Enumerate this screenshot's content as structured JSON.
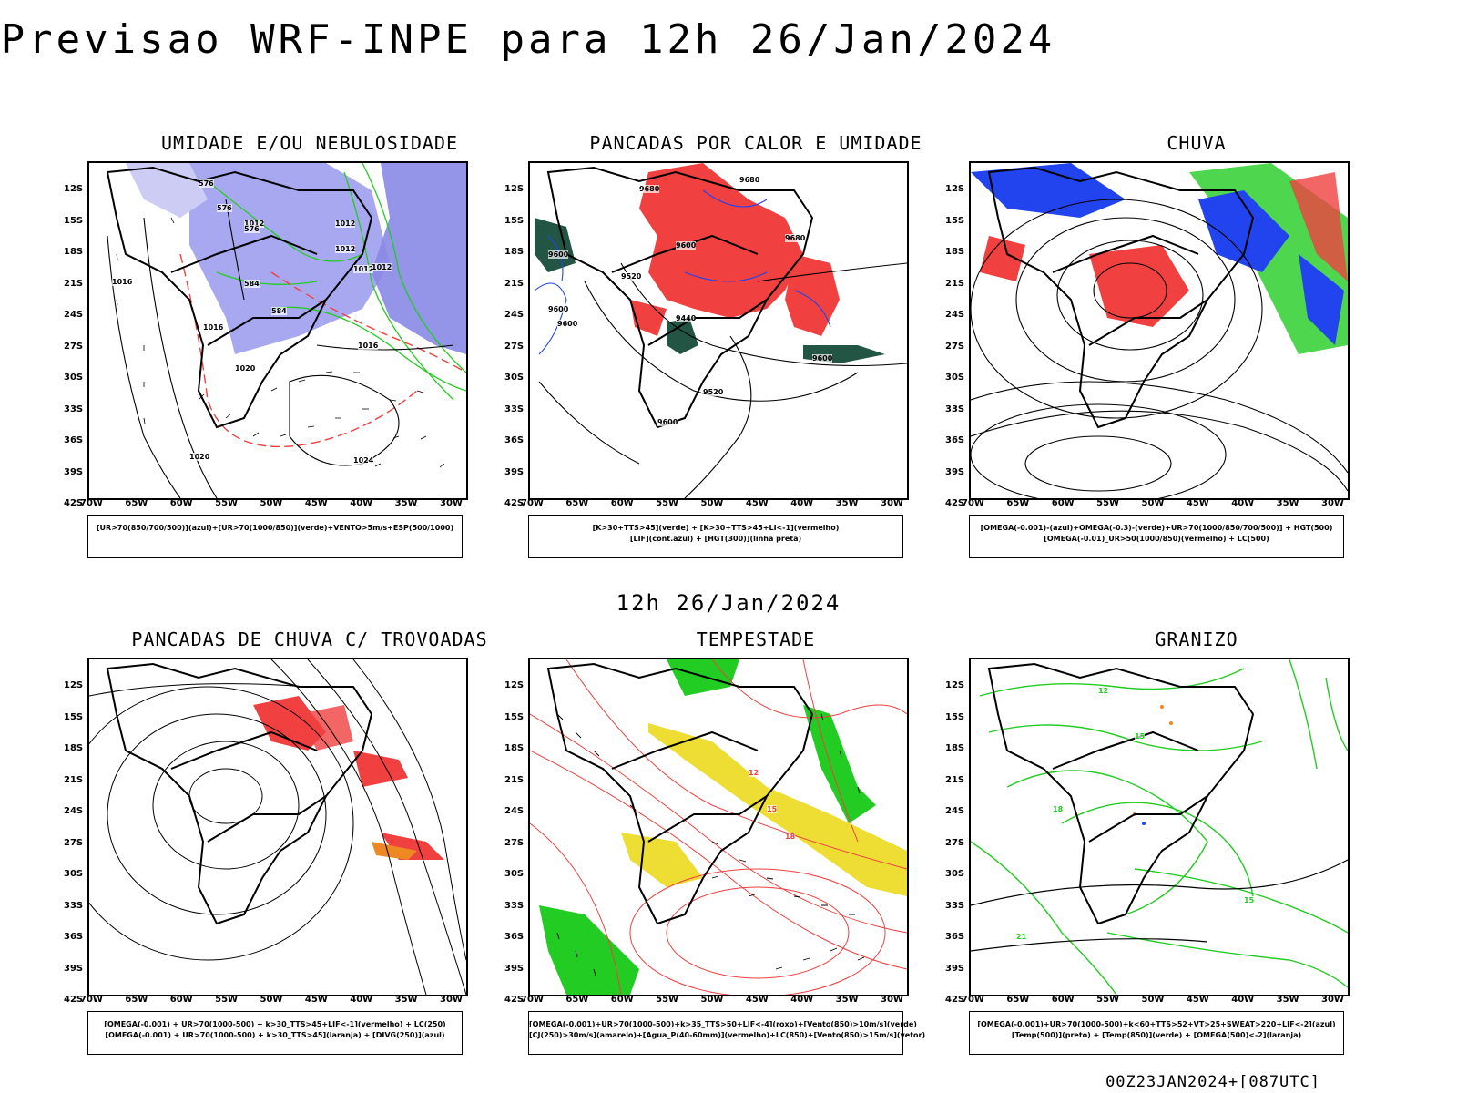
{
  "title": "Previsao WRF-INPE  para 12h 26/Jan/2024",
  "subtitle": "12h 26/Jan/2024",
  "footer": "00Z23JAN2024+[087UTC]",
  "lat_labels": [
    "12S",
    "15S",
    "18S",
    "21S",
    "24S",
    "27S",
    "30S",
    "33S",
    "36S",
    "39S",
    "42S"
  ],
  "lon_labels": [
    "70W",
    "65W",
    "60W",
    "55W",
    "50W",
    "45W",
    "40W",
    "35W",
    "30W"
  ],
  "colors": {
    "red": "#f04040",
    "green": "#22cc22",
    "blue": "#2244ee",
    "lavender": "#9999ee",
    "yellow": "#eedd33",
    "darkgreen": "#225544",
    "orange": "#ee8822"
  },
  "panels": [
    {
      "name": "umidade",
      "title": "UMIDADE E/OU NEBULOSIDADE",
      "legend": [
        "[UR>70(850/700/500)](azul)+[UR>70(1000/850)](verde)+VENTO>5m/s+ESP(500/1000)"
      ]
    },
    {
      "name": "pancadas-calor",
      "title": "PANCADAS POR CALOR E UMIDADE",
      "legend": [
        "[K>30+TTS>45](verde) + [K>30+TTS>45+LI<-1](vermelho)",
        "[LIF](cont.azul) + [HGT(300)](linha preta)"
      ]
    },
    {
      "name": "chuva",
      "title": "CHUVA",
      "legend": [
        "[OMEGA(-0.001)-(azul)+OMEGA(-0.3)-(verde)+UR>70(1000/850/700/500)] + HGT(500)",
        "[OMEGA(-0.01)_UR>50(1000/850)(vermelho) + LC(500)"
      ]
    },
    {
      "name": "trovoadas",
      "title": "PANCADAS DE CHUVA C/ TROVOADAS",
      "legend": [
        "[OMEGA(-0.001) + UR>70(1000-500) + k>30_TTS>45+LIF<-1](vermelho) + LC(250)",
        "[OMEGA(-0.001) + UR>70(1000-500) + k>30_TTS>45](laranja) + [DIVG(250)](azul)"
      ]
    },
    {
      "name": "tempestade",
      "title": "TEMPESTADE",
      "legend": [
        "[OMEGA(-0.001)+UR>70(1000-500)+k>35_TTS>50+LIF<-4](roxo)+[Vento(850)>10m/s](verde)",
        "[CJ(250)>30m/s](amarelo)+[Agua_P(40-60mm)](vermelho)+LC(850)+[Vento(850)>15m/s](vetor)"
      ]
    },
    {
      "name": "granizo",
      "title": "GRANIZO",
      "legend": [
        "[OMEGA(-0.001)+UR>70(1000-500)+k<60+TTS>52+VT>25+SWEAT>220+LIF<-2](azul)",
        "[Temp(500)](preto) + [Temp(850)](verde) + [OMEGA(500)<-2](laranja)"
      ]
    }
  ],
  "contour_labels": {
    "umidade": [
      "1012",
      "1012",
      "1012",
      "1012",
      "1016",
      "1016",
      "1020",
      "1020",
      "1024",
      "1016",
      "1012",
      "576",
      "576",
      "576",
      "584",
      "584"
    ],
    "pancadas-calor": [
      "9680",
      "9680",
      "9600",
      "9600",
      "9520",
      "9440",
      "9600",
      "9600",
      "9520",
      "9600",
      "9680",
      "9600"
    ],
    "tempestade": [
      "12",
      "15",
      "18"
    ],
    "granizo": [
      "12",
      "15",
      "18",
      "21",
      "15"
    ]
  }
}
